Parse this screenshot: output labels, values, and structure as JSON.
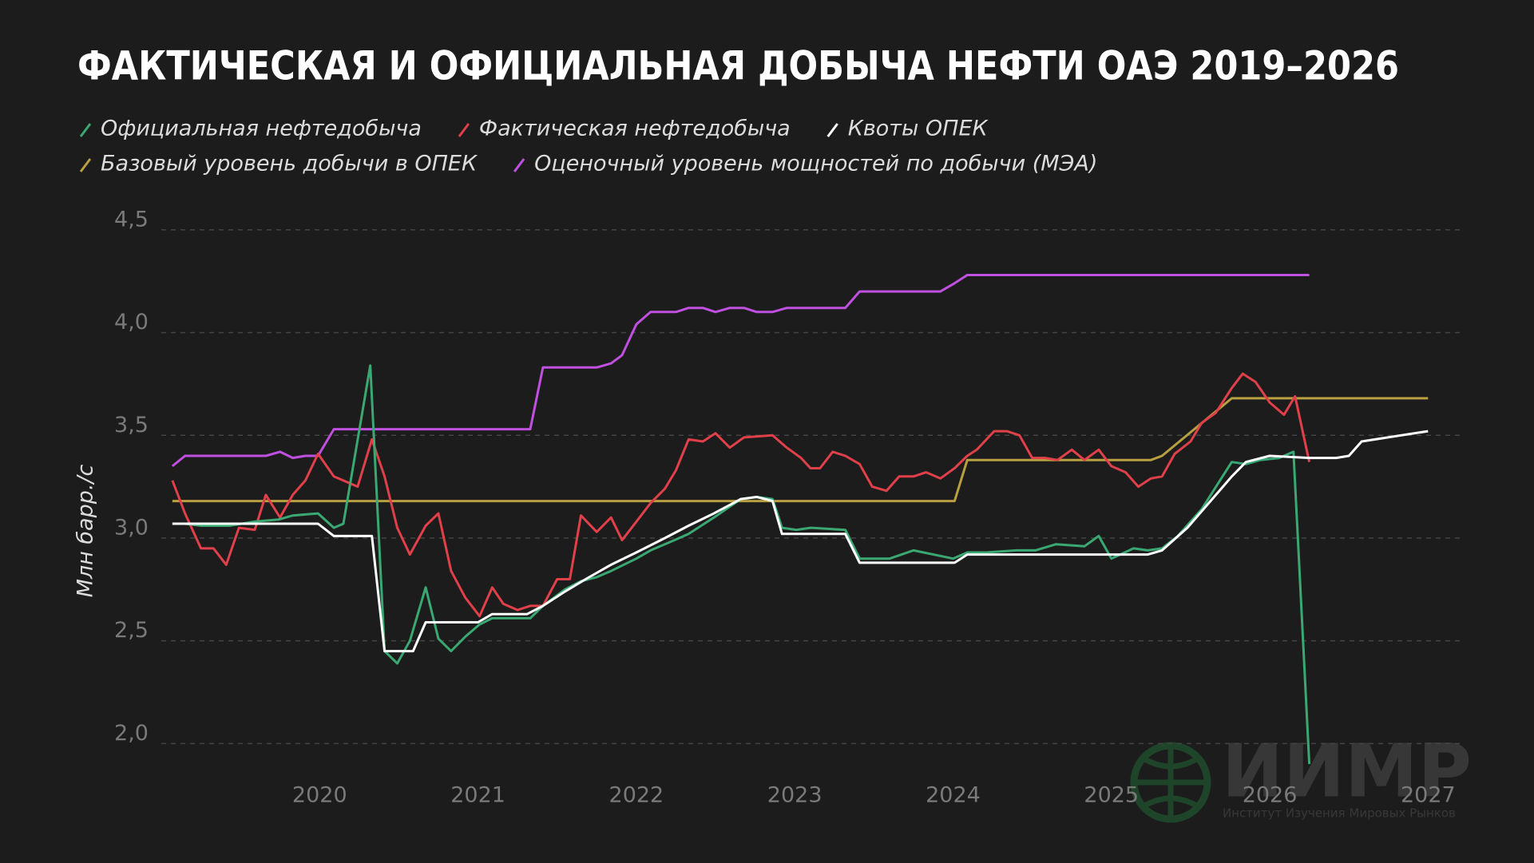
{
  "chart_data": {
    "type": "line",
    "title": "ФАКТИЧЕСКАЯ И ОФИЦИАЛЬНАЯ ДОБЫЧА НЕФТИ ОАЭ 2019–2026",
    "y_label": "Млн барр./с",
    "xlim": [
      2019,
      2027.2
    ],
    "xticks": [
      2020,
      2021,
      2022,
      2023,
      2024,
      2025,
      2026,
      2027
    ],
    "ylim": [
      1.85,
      4.55
    ],
    "yticks": [
      {
        "value": 2.0,
        "label": "2,0"
      },
      {
        "value": 2.5,
        "label": "2,5"
      },
      {
        "value": 3.0,
        "label": "3,0"
      },
      {
        "value": 3.5,
        "label": "3,5"
      },
      {
        "value": 4.0,
        "label": "4,0"
      },
      {
        "value": 4.5,
        "label": "4,5"
      }
    ],
    "grid": true,
    "series": [
      {
        "name": "Официальная нефтедобыча",
        "color": "#3aa872",
        "x": [
          2019.07,
          2019.15,
          2019.25,
          2019.43,
          2019.59,
          2019.74,
          2019.83,
          2019.99,
          2020.09,
          2020.15,
          2020.32,
          2020.41,
          2020.49,
          2020.57,
          2020.67,
          2020.75,
          2020.83,
          2020.92,
          2021.01,
          2021.09,
          2021.33,
          2021.41,
          2021.55,
          2021.65,
          2021.75,
          2021.84,
          2022.0,
          2022.09,
          2022.24,
          2022.33,
          2022.49,
          2022.66,
          2022.76,
          2022.86,
          2022.92,
          2023.01,
          2023.1,
          2023.32,
          2023.41,
          2023.6,
          2023.75,
          2024.0,
          2024.09,
          2024.21,
          2024.4,
          2024.52,
          2024.65,
          2024.83,
          2024.92,
          2025.0,
          2025.14,
          2025.23,
          2025.32,
          2025.42,
          2025.57,
          2025.76,
          2025.85,
          2025.94,
          2026.06,
          2026.15,
          2026.25
        ],
        "values": [
          3.07,
          3.07,
          3.06,
          3.06,
          3.08,
          3.09,
          3.11,
          3.12,
          3.05,
          3.07,
          3.84,
          2.45,
          2.39,
          2.5,
          2.76,
          2.51,
          2.45,
          2.52,
          2.58,
          2.61,
          2.61,
          2.67,
          2.75,
          2.79,
          2.81,
          2.84,
          2.9,
          2.94,
          2.99,
          3.02,
          3.1,
          3.19,
          3.2,
          3.19,
          3.05,
          3.04,
          3.05,
          3.04,
          2.9,
          2.9,
          2.94,
          2.9,
          2.93,
          2.93,
          2.94,
          2.94,
          2.97,
          2.96,
          3.01,
          2.9,
          2.95,
          2.94,
          2.95,
          3.01,
          3.14,
          3.37,
          3.36,
          3.38,
          3.39,
          3.42,
          1.9
        ]
      },
      {
        "name": "Фактическая нефтедобыча",
        "color": "#e0404a",
        "x": [
          2019.07,
          2019.15,
          2019.25,
          2019.33,
          2019.41,
          2019.49,
          2019.59,
          2019.66,
          2019.75,
          2019.83,
          2019.91,
          2019.99,
          2020.09,
          2020.15,
          2020.24,
          2020.33,
          2020.41,
          2020.49,
          2020.57,
          2020.67,
          2020.75,
          2020.83,
          2020.92,
          2021.01,
          2021.09,
          2021.16,
          2021.25,
          2021.33,
          2021.41,
          2021.5,
          2021.58,
          2021.65,
          2021.75,
          2021.84,
          2021.91,
          2022.0,
          2022.09,
          2022.18,
          2022.25,
          2022.33,
          2022.42,
          2022.5,
          2022.59,
          2022.68,
          2022.86,
          2022.95,
          2023.04,
          2023.1,
          2023.16,
          2023.24,
          2023.32,
          2023.41,
          2023.49,
          2023.58,
          2023.66,
          2023.75,
          2023.83,
          2023.92,
          2024.01,
          2024.09,
          2024.15,
          2024.26,
          2024.34,
          2024.42,
          2024.5,
          2024.58,
          2024.66,
          2024.75,
          2024.83,
          2024.92,
          2025.0,
          2025.09,
          2025.17,
          2025.25,
          2025.32,
          2025.4,
          2025.5,
          2025.57,
          2025.66,
          2025.76,
          2025.83,
          2025.91,
          2026.0,
          2026.09,
          2026.16,
          2026.25
        ],
        "values": [
          3.28,
          3.12,
          2.95,
          2.95,
          2.87,
          3.05,
          3.04,
          3.21,
          3.1,
          3.21,
          3.28,
          3.41,
          3.3,
          3.28,
          3.25,
          3.48,
          3.3,
          3.05,
          2.92,
          3.06,
          3.12,
          2.84,
          2.71,
          2.62,
          2.76,
          2.68,
          2.65,
          2.67,
          2.67,
          2.8,
          2.8,
          3.11,
          3.03,
          3.1,
          2.99,
          3.08,
          3.17,
          3.24,
          3.33,
          3.48,
          3.47,
          3.51,
          3.44,
          3.49,
          3.5,
          3.44,
          3.39,
          3.34,
          3.34,
          3.42,
          3.4,
          3.36,
          3.25,
          3.23,
          3.3,
          3.3,
          3.32,
          3.29,
          3.34,
          3.4,
          3.43,
          3.52,
          3.52,
          3.5,
          3.39,
          3.39,
          3.38,
          3.43,
          3.38,
          3.43,
          3.35,
          3.32,
          3.25,
          3.29,
          3.3,
          3.41,
          3.47,
          3.56,
          3.61,
          3.73,
          3.8,
          3.76,
          3.66,
          3.6,
          3.69,
          3.37
        ]
      },
      {
        "name": "Квоты ОПЕК",
        "color": "#ffffff",
        "x": [
          2019.07,
          2019.99,
          2020.09,
          2020.33,
          2020.41,
          2020.59,
          2020.67,
          2021.0,
          2021.09,
          2021.31,
          2021.41,
          2021.55,
          2021.68,
          2021.84,
          2022.0,
          2022.18,
          2022.33,
          2022.49,
          2022.66,
          2022.76,
          2022.86,
          2022.92,
          2023.32,
          2023.41,
          2024.01,
          2024.09,
          2025.23,
          2025.32,
          2025.48,
          2025.66,
          2025.76,
          2025.85,
          2026.0,
          2026.25,
          2026.42,
          2026.5,
          2026.58,
          2027.0
        ],
        "values": [
          3.07,
          3.07,
          3.01,
          3.01,
          2.45,
          2.45,
          2.59,
          2.59,
          2.63,
          2.63,
          2.67,
          2.74,
          2.8,
          2.87,
          2.93,
          3.0,
          3.06,
          3.12,
          3.19,
          3.2,
          3.18,
          3.02,
          3.02,
          2.88,
          2.88,
          2.92,
          2.92,
          2.94,
          3.05,
          3.21,
          3.3,
          3.37,
          3.4,
          3.39,
          3.39,
          3.4,
          3.47,
          3.52
        ]
      },
      {
        "name": "Базовый уровень добычи в ОПЕК",
        "color": "#b8a040",
        "x": [
          2019.07,
          2024.01,
          2024.09,
          2025.25,
          2025.32,
          2025.76,
          2027.0
        ],
        "values": [
          3.18,
          3.18,
          3.38,
          3.38,
          3.4,
          3.68,
          3.68
        ]
      },
      {
        "name": "Оценочный уровень мощностей по добычи (МЭА)",
        "color": "#c050e0",
        "x": [
          2019.07,
          2019.15,
          2019.66,
          2019.75,
          2019.83,
          2019.91,
          2019.99,
          2020.09,
          2021.33,
          2021.41,
          2021.75,
          2021.84,
          2021.91,
          2022.0,
          2022.09,
          2022.18,
          2022.25,
          2022.33,
          2022.42,
          2022.5,
          2022.59,
          2022.68,
          2022.76,
          2022.86,
          2022.95,
          2023.32,
          2023.41,
          2023.92,
          2024.01,
          2024.09,
          2026.25
        ],
        "values": [
          3.35,
          3.4,
          3.4,
          3.42,
          3.39,
          3.4,
          3.4,
          3.53,
          3.53,
          3.83,
          3.83,
          3.85,
          3.89,
          4.04,
          4.1,
          4.1,
          4.1,
          4.12,
          4.12,
          4.1,
          4.12,
          4.12,
          4.1,
          4.1,
          4.12,
          4.12,
          4.2,
          4.2,
          4.24,
          4.28,
          4.28
        ]
      }
    ]
  },
  "logo": {
    "text": "ИИМР",
    "subtitle": "Институт Изучения Мировых Рынков"
  }
}
